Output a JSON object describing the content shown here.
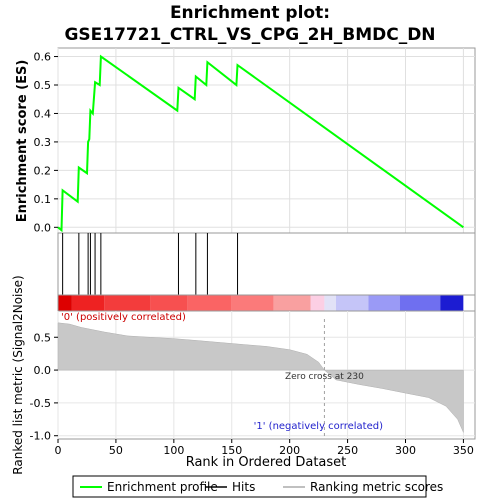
{
  "chart_data": {
    "type": "line",
    "title": "Enrichment plot:\nGSE17721_CTRL_VS_CPG_2H_BMDC_DN",
    "title_lines": [
      "Enrichment plot:",
      "GSE17721_CTRL_VS_CPG_2H_BMDC_DN"
    ],
    "xlabel": "Rank in Ordered Dataset",
    "xlim": [
      0,
      360
    ],
    "x_ticks": [
      0,
      50,
      100,
      150,
      200,
      250,
      300,
      350
    ],
    "top_panel": {
      "ylabel": "Enrichment score (ES)",
      "ylim": [
        -0.02,
        0.63
      ],
      "y_ticks": [
        0.0,
        0.1,
        0.2,
        0.3,
        0.4,
        0.5,
        0.6
      ],
      "y_tick_labels": [
        "0.0",
        "0.1",
        "0.2",
        "0.3",
        "0.4",
        "0.5",
        "0.6"
      ],
      "grid": true,
      "color": "#00ff00",
      "es_profile": [
        [
          0,
          0.0
        ],
        [
          3,
          -0.01
        ],
        [
          4,
          0.13
        ],
        [
          17,
          0.09
        ],
        [
          18,
          0.21
        ],
        [
          25,
          0.19
        ],
        [
          26,
          0.3
        ],
        [
          27,
          0.31
        ],
        [
          28,
          0.41
        ],
        [
          30,
          0.4
        ],
        [
          32,
          0.51
        ],
        [
          36,
          0.5
        ],
        [
          37,
          0.6
        ],
        [
          103,
          0.41
        ],
        [
          104,
          0.49
        ],
        [
          118,
          0.45
        ],
        [
          119,
          0.53
        ],
        [
          128,
          0.5
        ],
        [
          129,
          0.58
        ],
        [
          154,
          0.5
        ],
        [
          155,
          0.57
        ],
        [
          350,
          0.0
        ]
      ]
    },
    "hits": [
      4,
      18,
      26,
      28,
      32,
      37,
      104,
      119,
      129,
      155
    ],
    "heatmap_colors": [
      "#dd0000",
      "#ee2222",
      "#f33c3c",
      "#f75050",
      "#fa6464",
      "#fb7a7a",
      "#f9a0a0",
      "#fccfe4",
      "#e2e2f7",
      "#c5c5f8",
      "#9a9af6",
      "#6f6ff0",
      "#4848e6",
      "#1c1cd2"
    ],
    "bottom_panel": {
      "ylabel": "Ranked list metric (Signal2Noise)",
      "ylim": [
        -1.05,
        0.9
      ],
      "y_ticks": [
        0.5,
        0.0,
        -0.5,
        -1.0
      ],
      "y_tick_labels": [
        "0.5",
        "0.0",
        "-0.5",
        "-1.0"
      ],
      "zero_cross_rank": 230,
      "metric_profile": [
        [
          0,
          0.72
        ],
        [
          10,
          0.7
        ],
        [
          20,
          0.65
        ],
        [
          40,
          0.58
        ],
        [
          60,
          0.52
        ],
        [
          80,
          0.5
        ],
        [
          100,
          0.48
        ],
        [
          120,
          0.45
        ],
        [
          140,
          0.42
        ],
        [
          160,
          0.39
        ],
        [
          180,
          0.36
        ],
        [
          200,
          0.31
        ],
        [
          215,
          0.24
        ],
        [
          225,
          0.12
        ],
        [
          230,
          0.0
        ],
        [
          240,
          -0.15
        ],
        [
          260,
          -0.22
        ],
        [
          280,
          -0.28
        ],
        [
          300,
          -0.35
        ],
        [
          320,
          -0.42
        ],
        [
          335,
          -0.55
        ],
        [
          345,
          -0.75
        ],
        [
          350,
          -0.95
        ]
      ]
    },
    "annotations": {
      "positive": "'0' (positively correlated)",
      "negative": "'1' (negatively correlated)",
      "zero_cross": "Zero cross at 230"
    },
    "legend": {
      "placement": "bottom",
      "items": [
        {
          "label": "Enrichment profile",
          "color": "#00ff00"
        },
        {
          "label": "Hits",
          "color": "#000000"
        },
        {
          "label": "Ranking metric scores",
          "color": "#c0c0c0"
        }
      ]
    }
  }
}
